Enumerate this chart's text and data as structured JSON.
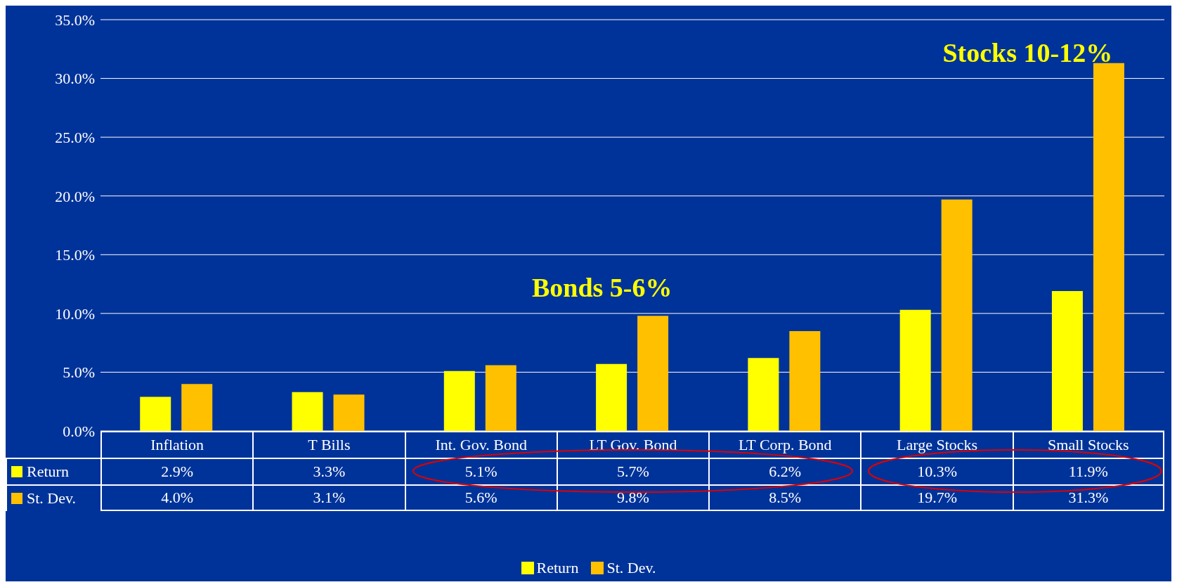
{
  "chart_data": {
    "type": "bar",
    "categories": [
      "Inflation",
      "T Bills",
      "Int. Gov. Bond",
      "LT Gov. Bond",
      "LT Corp. Bond",
      "Large Stocks",
      "Small Stocks"
    ],
    "series": [
      {
        "name": "Return",
        "color": "#ffff00",
        "values": [
          2.9,
          3.3,
          5.1,
          5.7,
          6.2,
          10.3,
          11.9
        ],
        "value_labels": [
          "2.9%",
          "3.3%",
          "5.1%",
          "5.7%",
          "6.2%",
          "10.3%",
          "11.9%"
        ]
      },
      {
        "name": "St. Dev.",
        "color": "#ffc000",
        "values": [
          4.0,
          3.1,
          5.6,
          9.8,
          8.5,
          19.7,
          31.3
        ],
        "value_labels": [
          "4.0%",
          "3.1%",
          "5.6%",
          "9.8%",
          "8.5%",
          "19.7%",
          "31.3%"
        ]
      }
    ],
    "ylim": [
      0,
      35
    ],
    "yticks": [
      {
        "value": 0,
        "label": "0.0%"
      },
      {
        "value": 5,
        "label": "5.0%"
      },
      {
        "value": 10,
        "label": "10.0%"
      },
      {
        "value": 15,
        "label": "15.0%"
      },
      {
        "value": 20,
        "label": "20.0%"
      },
      {
        "value": 25,
        "label": "25.0%"
      },
      {
        "value": 30,
        "label": "30.0%"
      },
      {
        "value": 35,
        "label": "35.0%"
      }
    ],
    "grid": "y",
    "legend": "bottom",
    "annotations": [
      "Bonds 5-6%",
      "Stocks 10-12%"
    ]
  }
}
